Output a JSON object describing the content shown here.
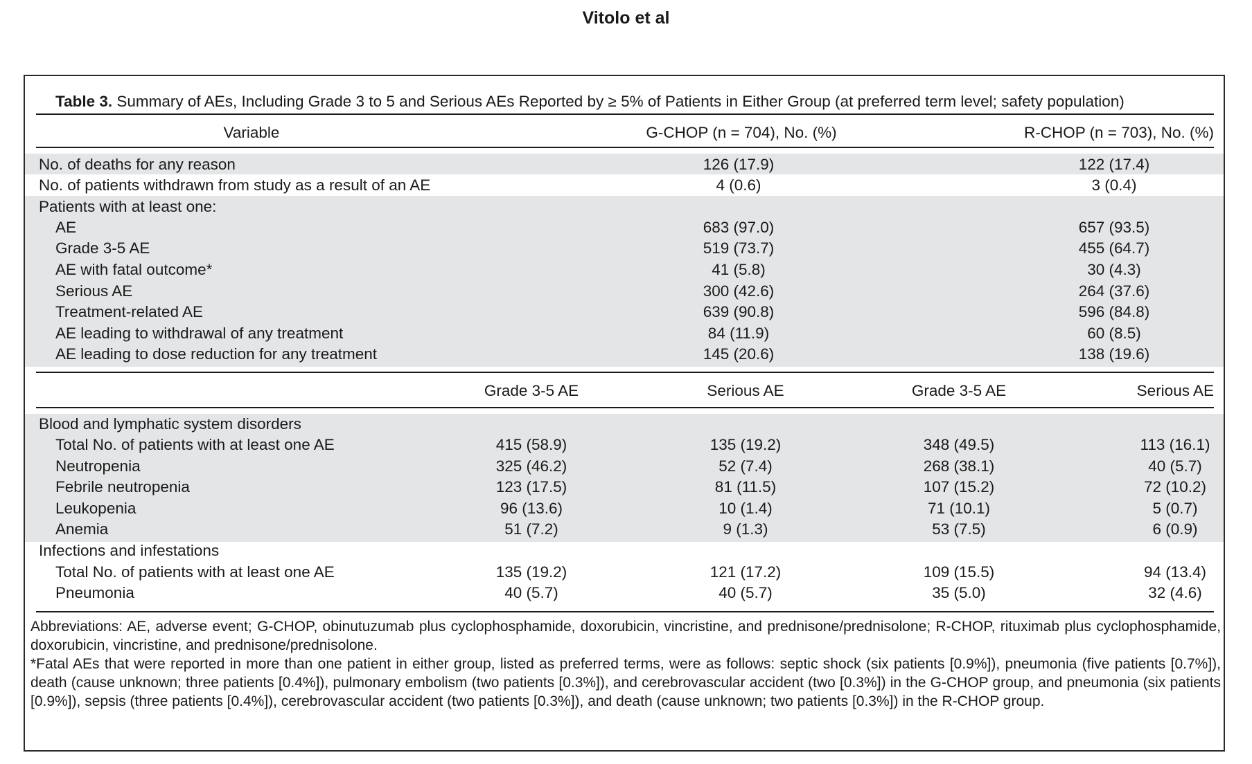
{
  "running_head": "Vitolo et al",
  "caption": {
    "label": "Table 3.",
    "text": "Summary of AEs, Including Grade 3 to 5 and Serious AEs Reported by ≥ 5% of Patients in Either Group (at preferred term level; safety population)"
  },
  "header1": {
    "variable": "Variable",
    "gchop": "G-CHOP (n = 704), No. (%)",
    "rchop": "R-CHOP (n = 703), No. (%)"
  },
  "summary": {
    "deaths": {
      "label": "No. of deaths for any reason",
      "gchop": "126 (17.9)",
      "rchop": "122 (17.4)"
    },
    "withdrawn": {
      "label": "No. of patients withdrawn from study as a result of an AE",
      "gchop": "4 (0.6)",
      "rchop": "3 (0.4)"
    },
    "atleast": {
      "label": "Patients with at least one:"
    },
    "ae": {
      "label": "AE",
      "gchop": "683 (97.0)",
      "rchop": "657 (93.5)"
    },
    "grade35": {
      "label": "Grade 3-5 AE",
      "gchop": "519 (73.7)",
      "rchop": "455 (64.7)"
    },
    "fatal": {
      "label": "AE with fatal outcome*",
      "gchop": "41 (5.8)",
      "rchop": "30 (4.3)"
    },
    "serious": {
      "label": "Serious AE",
      "gchop": "300 (42.6)",
      "rchop": "264 (37.6)"
    },
    "treatment": {
      "label": "Treatment-related AE",
      "gchop": "639 (90.8)",
      "rchop": "596 (84.8)"
    },
    "withdrawal": {
      "label": "AE leading to withdrawal of any treatment",
      "gchop": "84 (11.9)",
      "rchop": "60 (8.5)"
    },
    "dosered": {
      "label": "AE leading to dose reduction for any treatment",
      "gchop": "145 (20.6)",
      "rchop": "138 (19.6)"
    }
  },
  "header2": {
    "g_grade": "Grade 3-5 AE",
    "g_serious": "Serious AE",
    "r_grade": "Grade 3-5 AE",
    "r_serious": "Serious AE"
  },
  "blood": {
    "section": "Blood and lymphatic system disorders",
    "total": {
      "label": "Total No. of patients with at least one AE",
      "g_grade": "415 (58.9)",
      "g_serious": "135 (19.2)",
      "r_grade": "348 (49.5)",
      "r_serious": "113 (16.1)"
    },
    "neutropenia": {
      "label": "Neutropenia",
      "g_grade": "325 (46.2)",
      "g_serious": "52 (7.4)",
      "r_grade": "268 (38.1)",
      "r_serious": "40 (5.7)"
    },
    "febrile": {
      "label": "Febrile neutropenia",
      "g_grade": "123 (17.5)",
      "g_serious": "81 (11.5)",
      "r_grade": "107 (15.2)",
      "r_serious": "72 (10.2)"
    },
    "leukopenia": {
      "label": "Leukopenia",
      "g_grade": "96 (13.6)",
      "g_serious": "10 (1.4)",
      "r_grade": "71 (10.1)",
      "r_serious": "5 (0.7)"
    },
    "anemia": {
      "label": "Anemia",
      "g_grade": "51 (7.2)",
      "g_serious": "9 (1.3)",
      "r_grade": "53 (7.5)",
      "r_serious": "6 (0.9)"
    }
  },
  "infections": {
    "section": "Infections and infestations",
    "total": {
      "label": "Total No. of patients with at least one AE",
      "g_grade": "135 (19.2)",
      "g_serious": "121 (17.2)",
      "r_grade": "109 (15.5)",
      "r_serious": "94 (13.4)"
    },
    "pneumonia": {
      "label": "Pneumonia",
      "g_grade": "40 (5.7)",
      "g_serious": "40 (5.7)",
      "r_grade": "35 (5.0)",
      "r_serious": "32 (4.6)"
    }
  },
  "footnotes": {
    "abbreviations": "Abbreviations: AE, adverse event; G-CHOP, obinutuzumab plus cyclophosphamide, doxorubicin, vincristine, and prednisone/prednisolone; R-CHOP, rituximab plus cyclophosphamide, doxorubicin, vincristine, and prednisone/prednisolone.",
    "fatal": "*Fatal AEs that were reported in more than one patient in either group, listed as preferred terms, were as follows: septic shock (six patients [0.9%]), pneumonia (five patients [0.7%]), death (cause unknown; three patients [0.4%]), pulmonary embolism (two patients [0.3%]), and cerebrovascular accident (two [0.3%]) in the G-CHOP group, and pneumonia (six patients [0.9%]), sepsis (three patients [0.4%]), cerebrovascular accident (two patients [0.3%]), and death (cause unknown; two patients [0.3%]) in the R-CHOP group."
  }
}
